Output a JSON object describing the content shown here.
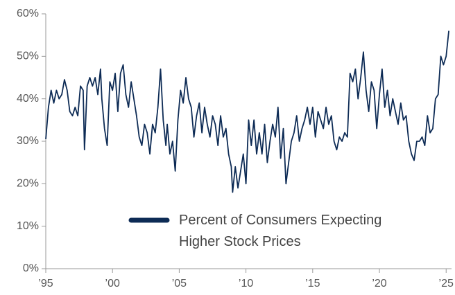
{
  "chart_data": {
    "type": "line",
    "x": [
      1995.0,
      1995.2,
      1995.4,
      1995.6,
      1995.8,
      1996.0,
      1996.2,
      1996.4,
      1996.6,
      1996.8,
      1997.0,
      1997.2,
      1997.4,
      1997.6,
      1997.8,
      1997.9,
      1998.1,
      1998.3,
      1998.5,
      1998.7,
      1998.9,
      1999.1,
      1999.2,
      1999.4,
      1999.6,
      1999.8,
      2000.0,
      2000.2,
      2000.4,
      2000.6,
      2000.8,
      2001.0,
      2001.2,
      2001.4,
      2001.6,
      2001.8,
      2002.0,
      2002.2,
      2002.4,
      2002.6,
      2002.8,
      2003.0,
      2003.2,
      2003.4,
      2003.6,
      2003.8,
      2004.0,
      2004.1,
      2004.3,
      2004.5,
      2004.7,
      2004.9,
      2005.1,
      2005.3,
      2005.5,
      2005.7,
      2005.9,
      2006.1,
      2006.3,
      2006.5,
      2006.7,
      2006.9,
      2007.1,
      2007.3,
      2007.5,
      2007.7,
      2007.9,
      2008.1,
      2008.3,
      2008.5,
      2008.7,
      2008.9,
      2009.0,
      2009.2,
      2009.4,
      2009.6,
      2009.8,
      2010.0,
      2010.2,
      2010.4,
      2010.6,
      2010.8,
      2011.0,
      2011.2,
      2011.4,
      2011.6,
      2011.8,
      2012.0,
      2012.2,
      2012.4,
      2012.6,
      2012.8,
      2013.0,
      2013.2,
      2013.4,
      2013.6,
      2013.8,
      2014.0,
      2014.2,
      2014.4,
      2014.6,
      2014.8,
      2015.0,
      2015.2,
      2015.4,
      2015.6,
      2015.8,
      2016.0,
      2016.2,
      2016.4,
      2016.6,
      2016.8,
      2017.0,
      2017.2,
      2017.4,
      2017.6,
      2017.8,
      2018.0,
      2018.2,
      2018.4,
      2018.6,
      2018.8,
      2019.0,
      2019.2,
      2019.4,
      2019.6,
      2019.8,
      2020.0,
      2020.2,
      2020.4,
      2020.6,
      2020.8,
      2021.0,
      2021.2,
      2021.4,
      2021.6,
      2021.8,
      2022.0,
      2022.2,
      2022.4,
      2022.6,
      2022.8,
      2023.0,
      2023.2,
      2023.4,
      2023.6,
      2023.8,
      2024.0,
      2024.2,
      2024.4,
      2024.6,
      2024.8,
      2025.0,
      2025.2
    ],
    "series": [
      {
        "name": "Percent of Consumers Expecting Higher Stock Prices",
        "color": "#0d2b55",
        "values": [
          30.5,
          38,
          42,
          39,
          42,
          40,
          41,
          44.5,
          42,
          37,
          36,
          38,
          36,
          43,
          42,
          28,
          43,
          45,
          43,
          45,
          41,
          47,
          40,
          33,
          29,
          44,
          42,
          46,
          37,
          46,
          48,
          41,
          38,
          44,
          40,
          36,
          31,
          29,
          34,
          32,
          27,
          34,
          32,
          38,
          47,
          35,
          29,
          34,
          27,
          30,
          23,
          35,
          42,
          39,
          45,
          40,
          38,
          31,
          36,
          39,
          32,
          38,
          34,
          31,
          36,
          34,
          29,
          36,
          31,
          33,
          27,
          24,
          18,
          24,
          19,
          23,
          27,
          20,
          35,
          29,
          35,
          27,
          32,
          27,
          34,
          25,
          30,
          34,
          31,
          38,
          26,
          33,
          20,
          25,
          30,
          32,
          36,
          30,
          33,
          35,
          38,
          34,
          38,
          31,
          37,
          35,
          33,
          38,
          34,
          36,
          30,
          28,
          31,
          30,
          32,
          31,
          46,
          44,
          47,
          40,
          45,
          51,
          42,
          37,
          44,
          42,
          33,
          41,
          47,
          38,
          42,
          36,
          40,
          37,
          34,
          39,
          35,
          36,
          30,
          27,
          25.5,
          30,
          30,
          31,
          29,
          36,
          32,
          33,
          40,
          41,
          50,
          48,
          50,
          56
        ]
      }
    ],
    "xlim": [
      1995,
      2025.3
    ],
    "ylim": [
      0,
      60
    ],
    "xticks": [
      {
        "value": 1995,
        "label": "’95"
      },
      {
        "value": 2000,
        "label": "’00"
      },
      {
        "value": 2005,
        "label": "’05"
      },
      {
        "value": 2010,
        "label": "’10"
      },
      {
        "value": 2015,
        "label": "’15"
      },
      {
        "value": 2020,
        "label": "’20"
      },
      {
        "value": 2025,
        "label": "’25"
      }
    ],
    "yticks": [
      {
        "value": 0,
        "label": "0%"
      },
      {
        "value": 10,
        "label": "10%"
      },
      {
        "value": 20,
        "label": "20%"
      },
      {
        "value": 30,
        "label": "30%"
      },
      {
        "value": 40,
        "label": "40%"
      },
      {
        "value": 50,
        "label": "50%"
      },
      {
        "value": 60,
        "label": "60%"
      }
    ]
  }
}
